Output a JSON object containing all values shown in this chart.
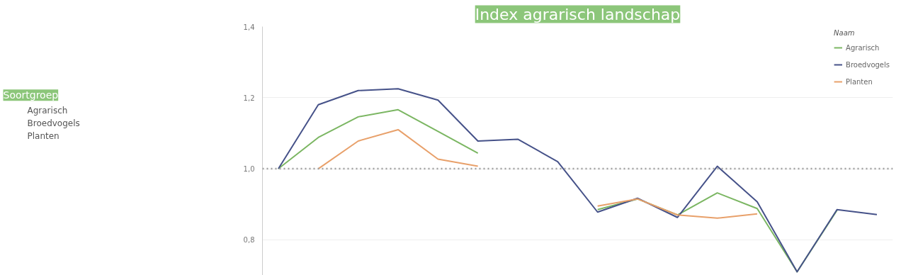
{
  "chart_data": {
    "type": "line",
    "title": "Index agrarisch landschap",
    "legend_title": "Naam",
    "annotations": [
      "Soortgroep",
      "Agrarisch",
      "Broedvogels",
      "Planten"
    ],
    "categories": [
      null,
      null,
      null,
      null,
      null,
      null,
      null,
      null,
      null,
      null,
      null,
      null,
      null,
      null,
      null,
      null
    ],
    "series": [
      {
        "name": "Agrarisch",
        "color": "#7bb662",
        "values": [
          1.0,
          1.088,
          1.146,
          1.166,
          1.105,
          1.044,
          null,
          null,
          0.885,
          0.915,
          0.87,
          0.932,
          0.888,
          0.71,
          0.883,
          null
        ]
      },
      {
        "name": "Broedvogels",
        "color": "#465289",
        "values": [
          1.0,
          1.18,
          1.22,
          1.225,
          1.193,
          1.078,
          1.083,
          1.02,
          0.878,
          0.917,
          0.863,
          1.007,
          0.907,
          0.71,
          0.885,
          0.871
        ]
      },
      {
        "name": "Planten",
        "color": "#e8a06a",
        "values": [
          null,
          1.0,
          1.078,
          1.11,
          1.027,
          1.007,
          null,
          null,
          0.895,
          0.915,
          0.87,
          0.861,
          0.873,
          null,
          null,
          null
        ]
      }
    ],
    "ylim": [
      0.7,
      1.4
    ],
    "yticks": [
      {
        "value": 0.8,
        "label": "0,8"
      },
      {
        "value": 1.0,
        "label": "1,0"
      },
      {
        "value": 1.2,
        "label": "1,2"
      },
      {
        "value": 1.4,
        "label": "1,4"
      }
    ],
    "ref_lines": [
      {
        "axis": "y",
        "value": 1.0,
        "label": null,
        "color": "#a0a0a0",
        "line_style": "dotted"
      }
    ],
    "grid": "y",
    "legend": "top right",
    "tick_labels": "y",
    "line_style": "solid"
  }
}
